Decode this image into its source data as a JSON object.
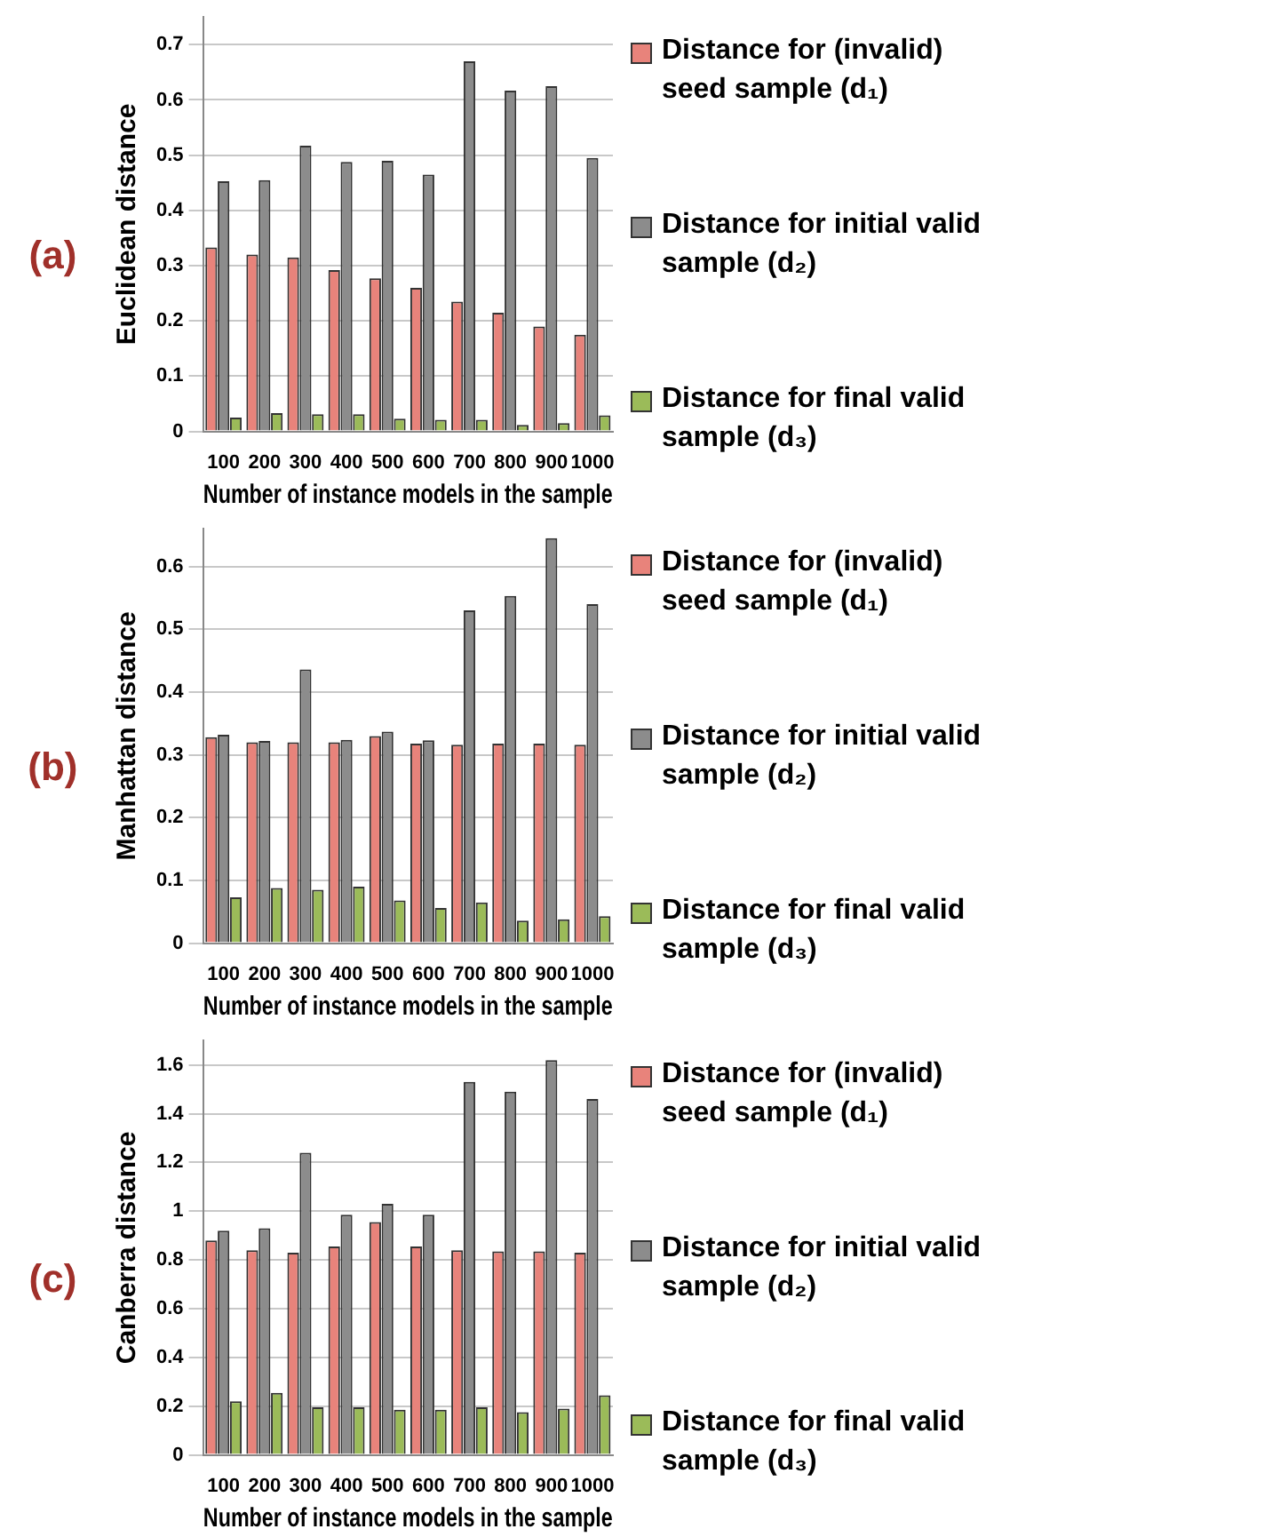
{
  "chart_data": [
    {
      "type": "bar",
      "annotations": [
        "(a)"
      ],
      "xlabel": "Number of instance models in the sample",
      "ylabel": "Euclidean distance",
      "categories": [
        "100",
        "200",
        "300",
        "400",
        "500",
        "600",
        "700",
        "800",
        "900",
        "1000"
      ],
      "series": [
        {
          "name": "Distance for (invalid) seed sample (d₁)",
          "color": "#e8837b",
          "values": [
            0.333,
            0.32,
            0.315,
            0.292,
            0.277,
            0.26,
            0.235,
            0.215,
            0.19,
            0.175
          ]
        },
        {
          "name": "Distance for initial valid sample (d₂)",
          "color": "#8c8c8c",
          "values": [
            0.453,
            0.455,
            0.517,
            0.488,
            0.49,
            0.465,
            0.67,
            0.617,
            0.625,
            0.495
          ]
        },
        {
          "name": "Distance for final valid sample (d₃)",
          "color": "#9bbb59",
          "values": [
            0.025,
            0.033,
            0.031,
            0.031,
            0.023,
            0.021,
            0.021,
            0.012,
            0.015,
            0.029
          ]
        }
      ],
      "ylim": [
        0,
        0.75
      ],
      "yticks": [
        0,
        0.1,
        0.2,
        0.3,
        0.4,
        0.5,
        0.6,
        0.7
      ],
      "grid": "y",
      "legend": "right"
    },
    {
      "type": "bar",
      "annotations": [
        "(b)"
      ],
      "xlabel": "Number of instance models in the sample",
      "ylabel": "Manhattan distance",
      "categories": [
        "100",
        "200",
        "300",
        "400",
        "500",
        "600",
        "700",
        "800",
        "900",
        "1000"
      ],
      "series": [
        {
          "name": "Distance for (invalid) seed sample (d₁)",
          "color": "#e8837b",
          "values": [
            0.328,
            0.32,
            0.32,
            0.32,
            0.33,
            0.318,
            0.316,
            0.318,
            0.318,
            0.316
          ]
        },
        {
          "name": "Distance for initial valid sample (d₂)",
          "color": "#8c8c8c",
          "values": [
            0.332,
            0.322,
            0.436,
            0.324,
            0.337,
            0.323,
            0.53,
            0.553,
            0.645,
            0.54
          ]
        },
        {
          "name": "Distance for final valid sample (d₃)",
          "color": "#9bbb59",
          "values": [
            0.073,
            0.088,
            0.085,
            0.09,
            0.068,
            0.056,
            0.065,
            0.036,
            0.038,
            0.043
          ]
        }
      ],
      "ylim": [
        0,
        0.66
      ],
      "yticks": [
        0,
        0.1,
        0.2,
        0.3,
        0.4,
        0.5,
        0.6
      ],
      "grid": "y",
      "legend": "right"
    },
    {
      "type": "bar",
      "annotations": [
        "(c)"
      ],
      "xlabel": "Number of instance models in the sample",
      "ylabel": "Canberra distance",
      "categories": [
        "100",
        "200",
        "300",
        "400",
        "500",
        "600",
        "700",
        "800",
        "900",
        "1000"
      ],
      "series": [
        {
          "name": "Distance for (invalid) seed sample (d₁)",
          "color": "#e8837b",
          "values": [
            0.88,
            0.84,
            0.83,
            0.855,
            0.955,
            0.855,
            0.84,
            0.835,
            0.835,
            0.83
          ]
        },
        {
          "name": "Distance for initial valid sample (d₂)",
          "color": "#8c8c8c",
          "values": [
            0.92,
            0.93,
            1.24,
            0.985,
            1.03,
            0.985,
            1.53,
            1.49,
            1.62,
            1.46
          ]
        },
        {
          "name": "Distance for final valid sample (d₃)",
          "color": "#9bbb59",
          "values": [
            0.22,
            0.255,
            0.195,
            0.195,
            0.185,
            0.185,
            0.195,
            0.175,
            0.19,
            0.245
          ]
        }
      ],
      "ylim": [
        0,
        1.7
      ],
      "yticks": [
        0,
        0.2,
        0.4,
        0.6,
        0.8,
        1,
        1.2,
        1.4,
        1.6
      ],
      "grid": "y",
      "legend": "right"
    }
  ]
}
